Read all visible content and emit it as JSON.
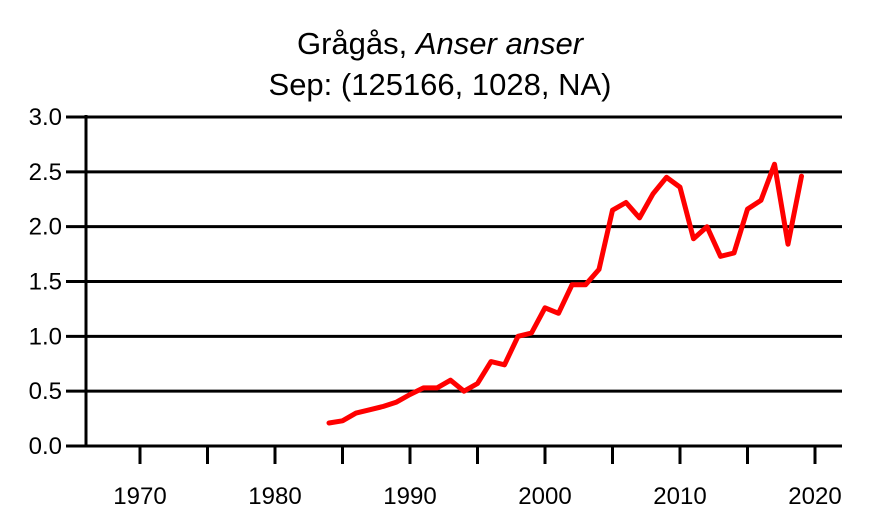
{
  "title": {
    "common_name": "Grågås, ",
    "latin_name": "Anser anser",
    "subtitle": "Sep: (125166, 1028, NA)"
  },
  "chart_data": {
    "type": "line",
    "title": "Grågås, Anser anser",
    "subtitle": "Sep: (125166, 1028, NA)",
    "xlabel": "",
    "ylabel": "",
    "xlim": [
      1966,
      2022
    ],
    "ylim": [
      0,
      3.0
    ],
    "x_tick_labels": [
      "1970",
      "1980",
      "1990",
      "2000",
      "2010",
      "2020"
    ],
    "x_tick_values": [
      1970,
      1980,
      1990,
      2000,
      2010,
      2020
    ],
    "x_minor_ticks": [
      1975,
      1985,
      1995,
      2005,
      2015
    ],
    "y_tick_labels": [
      "0.0",
      "0.5",
      "1.0",
      "1.5",
      "2.0",
      "2.5",
      "3.0"
    ],
    "y_tick_values": [
      0,
      0.5,
      1.0,
      1.5,
      2.0,
      2.5,
      3.0
    ],
    "grid": "horizontal",
    "series": [
      {
        "color": "#ff0000",
        "x": [
          1984,
          1985,
          1986,
          1987,
          1988,
          1989,
          1990,
          1991,
          1992,
          1993,
          1994,
          1995,
          1996,
          1997,
          1998,
          1999,
          2000,
          2001,
          2002,
          2003,
          2004,
          2005,
          2006,
          2007,
          2008,
          2009,
          2010,
          2011,
          2012,
          2013,
          2014,
          2015,
          2016,
          2017,
          2018,
          2019
        ],
        "y": [
          0.21,
          0.23,
          0.3,
          0.33,
          0.36,
          0.4,
          0.47,
          0.53,
          0.53,
          0.6,
          0.5,
          0.57,
          0.77,
          0.74,
          1.0,
          1.03,
          1.26,
          1.21,
          1.47,
          1.47,
          1.61,
          2.15,
          2.22,
          2.08,
          2.3,
          2.45,
          2.36,
          1.89,
          2.0,
          1.73,
          1.76,
          2.16,
          2.24,
          2.57,
          1.84,
          2.46
        ]
      }
    ]
  }
}
